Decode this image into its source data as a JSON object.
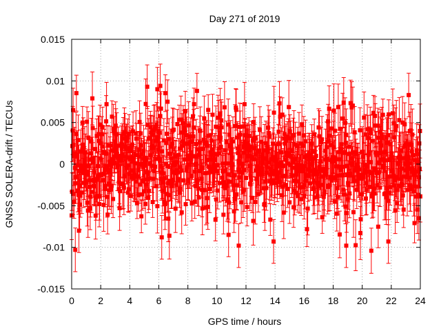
{
  "chart_data": {
    "type": "scatter",
    "title": "Day 271 of 2019",
    "xlabel": "GPS time / hours",
    "ylabel": "GNSS SOLERA-drift / TECUs",
    "xlim": [
      0,
      24
    ],
    "ylim": [
      -0.015,
      0.015
    ],
    "x_ticks": [
      0,
      2,
      4,
      6,
      8,
      10,
      12,
      14,
      16,
      18,
      20,
      22,
      24
    ],
    "x_tick_labels": [
      "0",
      "2",
      "4",
      "6",
      "8",
      "10",
      "12",
      "14",
      "16",
      "18",
      "20",
      "22",
      "24"
    ],
    "y_ticks": [
      -0.015,
      -0.01,
      -0.005,
      0,
      0.005,
      0.01,
      0.015
    ],
    "y_tick_labels": [
      "-0.015",
      "-0.01",
      "-0.005",
      "0",
      "0.005",
      "0.01",
      "0.015"
    ],
    "grid": true,
    "series": [
      {
        "name": "SOLERA-drift",
        "color": "#ff0000",
        "marker": "square",
        "error_bars": true,
        "x_range": [
          0,
          24
        ],
        "sample_interval_hours": 0.025,
        "typical_spread_sigma": 0.003,
        "typical_error_bar": 0.0025,
        "notable_points": [
          {
            "x": 0.25,
            "y": -0.0103
          },
          {
            "x": 0.5,
            "y": -0.008
          },
          {
            "x": 0.1,
            "y": 0.0065
          },
          {
            "x": 2.4,
            "y": 0.0072
          },
          {
            "x": 5.2,
            "y": 0.0093
          },
          {
            "x": 5.9,
            "y": 0.009
          },
          {
            "x": 6.1,
            "y": 0.0094
          },
          {
            "x": 6.2,
            "y": -0.0088
          },
          {
            "x": 6.6,
            "y": 0.0075
          },
          {
            "x": 10.8,
            "y": -0.0085
          },
          {
            "x": 11.9,
            "y": 0.0072
          },
          {
            "x": 11.5,
            "y": -0.0098
          },
          {
            "x": 13.9,
            "y": -0.0093
          },
          {
            "x": 14.3,
            "y": 0.0073
          },
          {
            "x": 18.9,
            "y": -0.0098
          },
          {
            "x": 21.8,
            "y": -0.0093
          },
          {
            "x": 23.2,
            "y": 0.0083
          },
          {
            "x": 23.9,
            "y": -0.0065
          }
        ]
      }
    ]
  }
}
